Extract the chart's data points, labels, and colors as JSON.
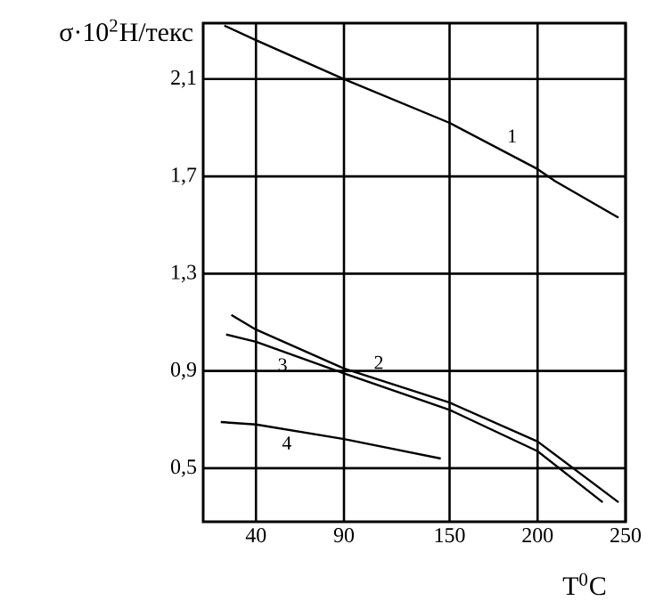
{
  "chart_data": {
    "type": "line",
    "ylabel": "σ·10$^{2}$Н/текс",
    "xlabel": "T$^{0}$C",
    "xlim": [
      10,
      250
    ],
    "ylim": [
      0.28,
      2.33
    ],
    "xticks": [
      40,
      90,
      150,
      200,
      250
    ],
    "yticks": [
      {
        "value": 0.5,
        "label": "0,5"
      },
      {
        "value": 0.9,
        "label": "0,9"
      },
      {
        "value": 1.3,
        "label": "1,3"
      },
      {
        "value": 1.7,
        "label": "1,7"
      },
      {
        "value": 2.1,
        "label": "2,1"
      }
    ],
    "grid": true,
    "series": [
      {
        "name": "1",
        "color": "#000000",
        "x": [
          22,
          40,
          90,
          150,
          200,
          210,
          246
        ],
        "values": [
          2.32,
          2.26,
          2.1,
          1.92,
          1.73,
          1.68,
          1.53
        ]
      },
      {
        "name": "2",
        "color": "#000000",
        "x": [
          26,
          40,
          90,
          150,
          200,
          246
        ],
        "values": [
          1.13,
          1.07,
          0.91,
          0.77,
          0.61,
          0.36
        ]
      },
      {
        "name": "3",
        "color": "#000000",
        "x": [
          23,
          40,
          90,
          150,
          200,
          237
        ],
        "values": [
          1.05,
          1.02,
          0.89,
          0.74,
          0.57,
          0.36
        ]
      },
      {
        "name": "4",
        "color": "#000000",
        "x": [
          20,
          40,
          90,
          145
        ],
        "values": [
          0.69,
          0.68,
          0.62,
          0.54
        ]
      }
    ]
  }
}
